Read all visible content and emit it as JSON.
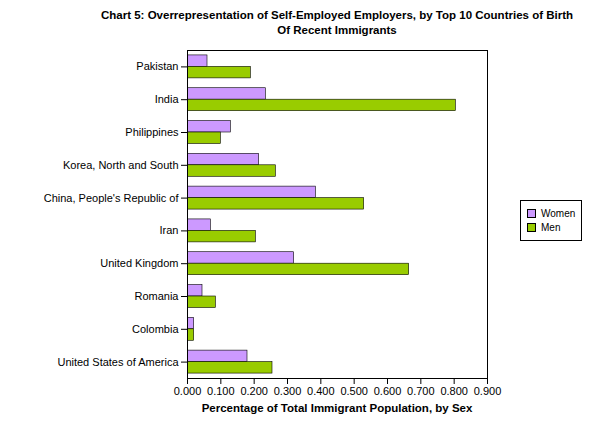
{
  "chart_data": {
    "type": "bar",
    "title": "Chart 5: Overrepresentation of Self-Employed Employers, by Top 10 Countries of Birth Of Recent Immigrants",
    "x_label": "Percentage of Total Immigrant Population, by Sex",
    "orientation": "horizontal",
    "categories": [
      "Pakistan",
      "India",
      "Philippines",
      "Korea, North and South",
      "China, People's Republic of",
      "Iran",
      "United Kingdom",
      "Romania",
      "Colombia",
      "United States of America"
    ],
    "series": [
      {
        "name": "Women",
        "color": "#cc99ff",
        "values": [
          0.06,
          0.235,
          0.13,
          0.215,
          0.385,
          0.07,
          0.32,
          0.045,
          0.02,
          0.18
        ]
      },
      {
        "name": "Men",
        "color": "#99cc00",
        "values": [
          0.19,
          0.805,
          0.1,
          0.265,
          0.53,
          0.205,
          0.665,
          0.085,
          0.02,
          0.255
        ]
      }
    ],
    "xlim": [
      0,
      0.9
    ],
    "xticks": [
      {
        "value": 0,
        "label": "0.000"
      },
      {
        "value": 0.1,
        "label": "0.100"
      },
      {
        "value": 0.2,
        "label": "0.200"
      },
      {
        "value": 0.3,
        "label": "0.300"
      },
      {
        "value": 0.4,
        "label": "0.400"
      },
      {
        "value": 0.5,
        "label": "0.500"
      },
      {
        "value": 0.6,
        "label": "0.600"
      },
      {
        "value": 0.7,
        "label": "0.700"
      },
      {
        "value": 0.8,
        "label": "0.800"
      },
      {
        "value": 0.9,
        "label": "0.900"
      }
    ],
    "grid": false,
    "legend": "right"
  }
}
